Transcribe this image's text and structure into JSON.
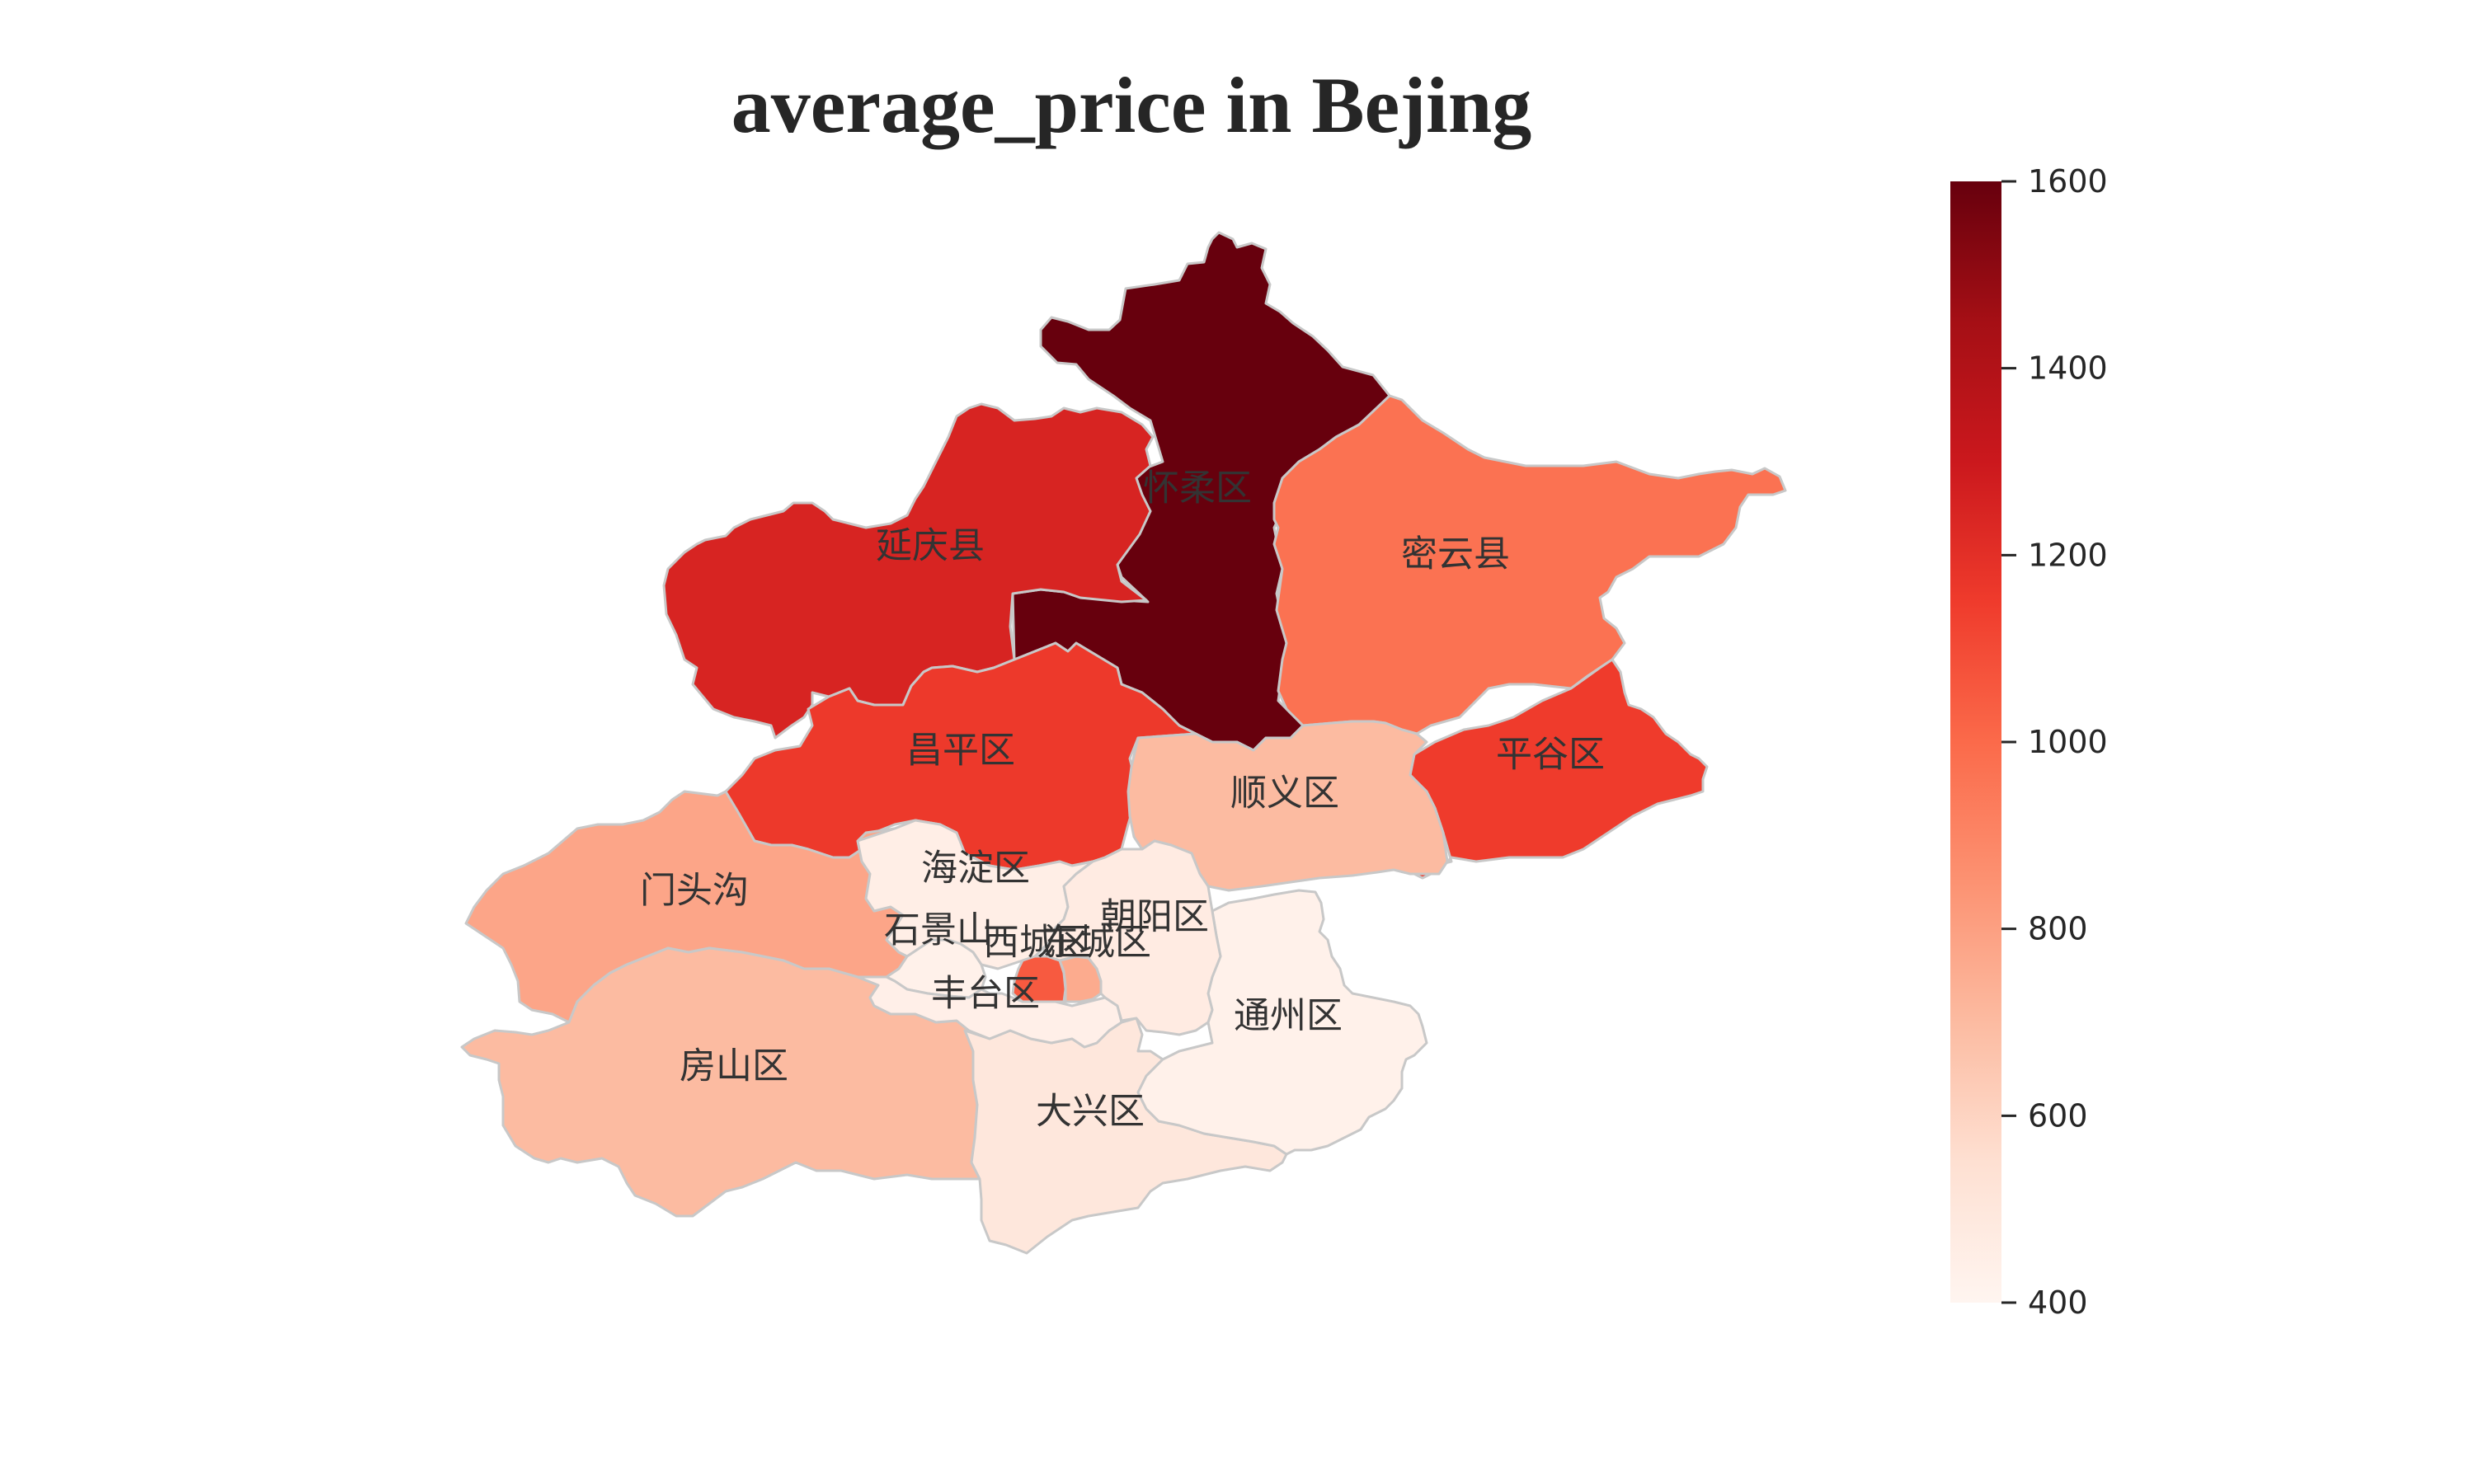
{
  "chart_data": {
    "type": "choropleth",
    "title": "average_price in Bejing",
    "colormap": "Reds",
    "colorbar": {
      "min": 400,
      "max": 1600,
      "ticks": [
        400,
        600,
        800,
        1000,
        1200,
        1400,
        1600
      ],
      "tick_labels": [
        "400",
        "600",
        "800",
        "1000",
        "1200",
        "1400",
        "1600"
      ]
    },
    "regions": [
      {
        "name": "怀柔区",
        "value": 1600
      },
      {
        "name": "延庆县",
        "value": 1250
      },
      {
        "name": "密云县",
        "value": 970
      },
      {
        "name": "昌平区",
        "value": 1160
      },
      {
        "name": "平谷区",
        "value": 1150
      },
      {
        "name": "顺义区",
        "value": 700
      },
      {
        "name": "门头沟",
        "value": 780
      },
      {
        "name": "房山区",
        "value": 700
      },
      {
        "name": "海淀区",
        "value": 450
      },
      {
        "name": "石景山",
        "value": 430
      },
      {
        "name": "朝阳区",
        "value": 470
      },
      {
        "name": "西城区",
        "value": 1050
      },
      {
        "name": "东城区",
        "value": 760
      },
      {
        "name": "丰台区",
        "value": 440
      },
      {
        "name": "通州区",
        "value": 430
      },
      {
        "name": "大兴区",
        "value": 500
      }
    ]
  }
}
